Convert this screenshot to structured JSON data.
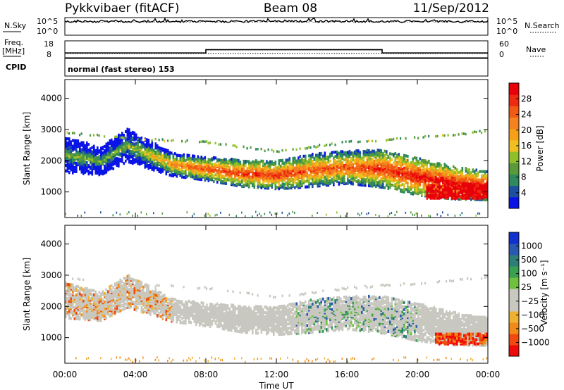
{
  "header": {
    "station": "Pykkvibaer (fitACF)",
    "beam": "Beam 08",
    "date": "11/Sep/2012"
  },
  "strip_nsky": {
    "label": "N.Sky",
    "left_ticks": [
      "10^5",
      "10^0"
    ],
    "right_ticks": [
      "10^5",
      "10^0"
    ],
    "right_label": "N.Search"
  },
  "strip_freq": {
    "label_line1": "Freq.",
    "label_line2": "[MHz]",
    "left_ticks": [
      "18",
      "8"
    ],
    "right_ticks": [
      "60",
      "0"
    ],
    "right_label": "Nave",
    "freq_steps": [
      {
        "start": 0,
        "end": 8,
        "mhz": 10.0
      },
      {
        "start": 8,
        "end": 18,
        "mhz": 13.3
      },
      {
        "start": 18,
        "end": 24,
        "mhz": 10.0
      }
    ],
    "nave_level": 12
  },
  "cpid": {
    "label": "CPID",
    "text": "normal (fast stereo) 153"
  },
  "panels": {
    "power_ylabel": "Slant Range [km]",
    "velocity_ylabel": "Slant Range [km]",
    "yticks": [
      "1000",
      "2000",
      "3000",
      "4000"
    ]
  },
  "xaxis": {
    "label": "Time UT",
    "ticks": [
      "00:00",
      "04:00",
      "08:00",
      "12:00",
      "16:00",
      "20:00",
      "00:00"
    ]
  },
  "colorbars": {
    "power": {
      "label": "Power [dB]",
      "ticks": [
        "28",
        "24",
        "20",
        "16",
        "12",
        "8",
        "4"
      ],
      "colors": [
        "#0a14e6",
        "#1f4fa0",
        "#2e8a5c",
        "#5a9a3a",
        "#8fbf2a",
        "#f0c020",
        "#f5a018",
        "#f58220",
        "#f05a14",
        "#ee2a10",
        "#e8000a"
      ]
    },
    "velocity": {
      "label": "Velocity [m s⁻¹]",
      "ticks": [
        "1000",
        "500",
        "100",
        "25",
        "−25",
        "−100",
        "−500",
        "−1000"
      ],
      "colors": [
        "#ee0a0a",
        "#f04a10",
        "#f08a18",
        "#f0b030",
        "#c8c8c0",
        "#c8c8c0",
        "#70c040",
        "#38a050",
        "#2e7e78",
        "#2a58b0",
        "#1030d0"
      ]
    }
  },
  "chart_data": {
    "type": "heatmap",
    "x_range": [
      "00:00",
      "24:00"
    ],
    "y_range_km": [
      180,
      4600
    ],
    "backscatter_band_power_db": [
      {
        "time_h": 0,
        "centre_km": 2200,
        "halfwidth_km": 380,
        "peak_db": 12
      },
      {
        "time_h": 2,
        "centre_km": 2000,
        "halfwidth_km": 300,
        "peak_db": 12
      },
      {
        "time_h": 3.5,
        "centre_km": 2500,
        "halfwidth_km": 350,
        "peak_db": 12
      },
      {
        "time_h": 6,
        "centre_km": 1900,
        "halfwidth_km": 250,
        "peak_db": 20
      },
      {
        "time_h": 8,
        "centre_km": 1750,
        "halfwidth_km": 250,
        "peak_db": 24
      },
      {
        "time_h": 10,
        "centre_km": 1600,
        "halfwidth_km": 280,
        "peak_db": 26
      },
      {
        "time_h": 12,
        "centre_km": 1550,
        "halfwidth_km": 300,
        "peak_db": 26
      },
      {
        "time_h": 14,
        "centre_km": 1700,
        "halfwidth_km": 350,
        "peak_db": 24
      },
      {
        "time_h": 16,
        "centre_km": 1800,
        "halfwidth_km": 350,
        "peak_db": 24
      },
      {
        "time_h": 18,
        "centre_km": 1750,
        "halfwidth_km": 400,
        "peak_db": 26
      },
      {
        "time_h": 20,
        "centre_km": 1500,
        "halfwidth_km": 400,
        "peak_db": 28
      },
      {
        "time_h": 22,
        "centre_km": 1300,
        "halfwidth_km": 350,
        "peak_db": 28
      },
      {
        "time_h": 24,
        "centre_km": 1200,
        "halfwidth_km": 300,
        "peak_db": 28
      }
    ],
    "upper_band_km": [
      {
        "time_h": 0,
        "km": 2900
      },
      {
        "time_h": 4,
        "km": 2700
      },
      {
        "time_h": 8,
        "km": 2600
      },
      {
        "time_h": 12,
        "km": 2300
      },
      {
        "time_h": 16,
        "km": 2600
      },
      {
        "time_h": 20,
        "km": 2750
      },
      {
        "time_h": 24,
        "km": 2950
      }
    ]
  }
}
